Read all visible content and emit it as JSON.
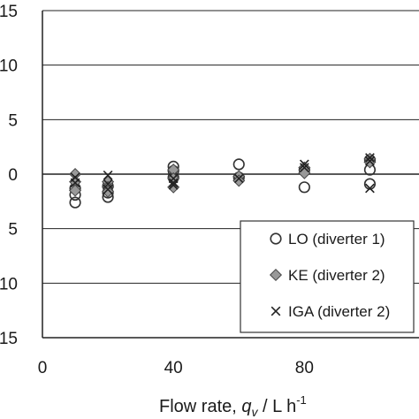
{
  "chart_data": {
    "type": "scatter",
    "xlabel": {
      "main": "Flow rate, ",
      "sym": "q",
      "sub": "v",
      "unit": " / L h",
      "sup": "-1"
    },
    "ylabel": "",
    "xlim": [
      0,
      115
    ],
    "ylim": [
      -15,
      15
    ],
    "xticks": [
      0,
      40,
      80
    ],
    "yticks": [
      -15,
      -10,
      -5,
      0,
      5,
      10,
      15
    ],
    "ytick_labels": [
      "15",
      "10",
      "5",
      "0",
      "5",
      "10",
      "15"
    ],
    "grid": "horizontal",
    "legend_position": "lower-right",
    "series": [
      {
        "name": "LO (diverter 1)",
        "marker": "circle",
        "color": "#333333",
        "points": [
          [
            10,
            -2.6
          ],
          [
            10,
            -1.9
          ],
          [
            10,
            -1.3
          ],
          [
            20,
            -2.1
          ],
          [
            20,
            -1.7
          ],
          [
            20,
            -1.1
          ],
          [
            40,
            0.7
          ],
          [
            40,
            0.3
          ],
          [
            40,
            -0.3
          ],
          [
            60,
            0.9
          ],
          [
            60,
            -0.3
          ],
          [
            80,
            0.4
          ],
          [
            80,
            -1.2
          ],
          [
            100,
            1.3
          ],
          [
            100,
            0.4
          ],
          [
            100,
            -0.9
          ]
        ]
      },
      {
        "name": "KE (diverter 2)",
        "marker": "diamond",
        "color": "#999999",
        "points": [
          [
            10,
            0.0
          ],
          [
            10,
            -0.7
          ],
          [
            10,
            -1.5
          ],
          [
            20,
            -0.7
          ],
          [
            20,
            -1.2
          ],
          [
            20,
            -1.6
          ],
          [
            40,
            0.4
          ],
          [
            40,
            -0.4
          ],
          [
            40,
            -1.2
          ],
          [
            60,
            -0.2
          ],
          [
            60,
            -0.6
          ],
          [
            80,
            0.6
          ],
          [
            80,
            0.1
          ],
          [
            100,
            1.4
          ],
          [
            100,
            1.1
          ]
        ]
      },
      {
        "name": "IGA (diverter 2)",
        "marker": "x",
        "color": "#222222",
        "points": [
          [
            10,
            -0.3
          ],
          [
            10,
            -0.8
          ],
          [
            20,
            -0.1
          ],
          [
            20,
            -0.9
          ],
          [
            20,
            -1.4
          ],
          [
            40,
            -0.4
          ],
          [
            40,
            -0.8
          ],
          [
            40,
            -1.0
          ],
          [
            60,
            -0.4
          ],
          [
            80,
            0.9
          ],
          [
            80,
            0.6
          ],
          [
            100,
            1.5
          ],
          [
            100,
            1.2
          ],
          [
            100,
            -1.3
          ]
        ]
      }
    ]
  }
}
